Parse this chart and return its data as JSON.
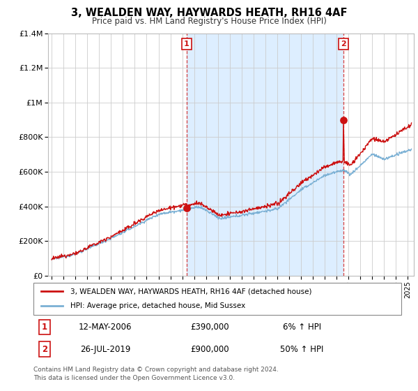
{
  "title": "3, WEALDEN WAY, HAYWARDS HEATH, RH16 4AF",
  "subtitle": "Price paid vs. HM Land Registry's House Price Index (HPI)",
  "legend_line1": "3, WEALDEN WAY, HAYWARDS HEATH, RH16 4AF (detached house)",
  "legend_line2": "HPI: Average price, detached house, Mid Sussex",
  "annotation1": {
    "label": "1",
    "date": "12-MAY-2006",
    "price": "£390,000",
    "change": "6% ↑ HPI",
    "x_year": 2006.37
  },
  "annotation2": {
    "label": "2",
    "date": "26-JUL-2019",
    "price": "£900,000",
    "change": "50% ↑ HPI",
    "x_year": 2019.56
  },
  "footer_line1": "Contains HM Land Registry data © Crown copyright and database right 2024.",
  "footer_line2": "This data is licensed under the Open Government Licence v3.0.",
  "hpi_color": "#7ab0d4",
  "price_color": "#cc1111",
  "dashed_line_color": "#cc1111",
  "shade_color": "#ddeeff",
  "background_color": "#ffffff",
  "plot_bg_color": "#ffffff",
  "grid_color": "#cccccc",
  "ylim": [
    0,
    1400000
  ],
  "xlim_start": 1994.7,
  "xlim_end": 2025.5
}
